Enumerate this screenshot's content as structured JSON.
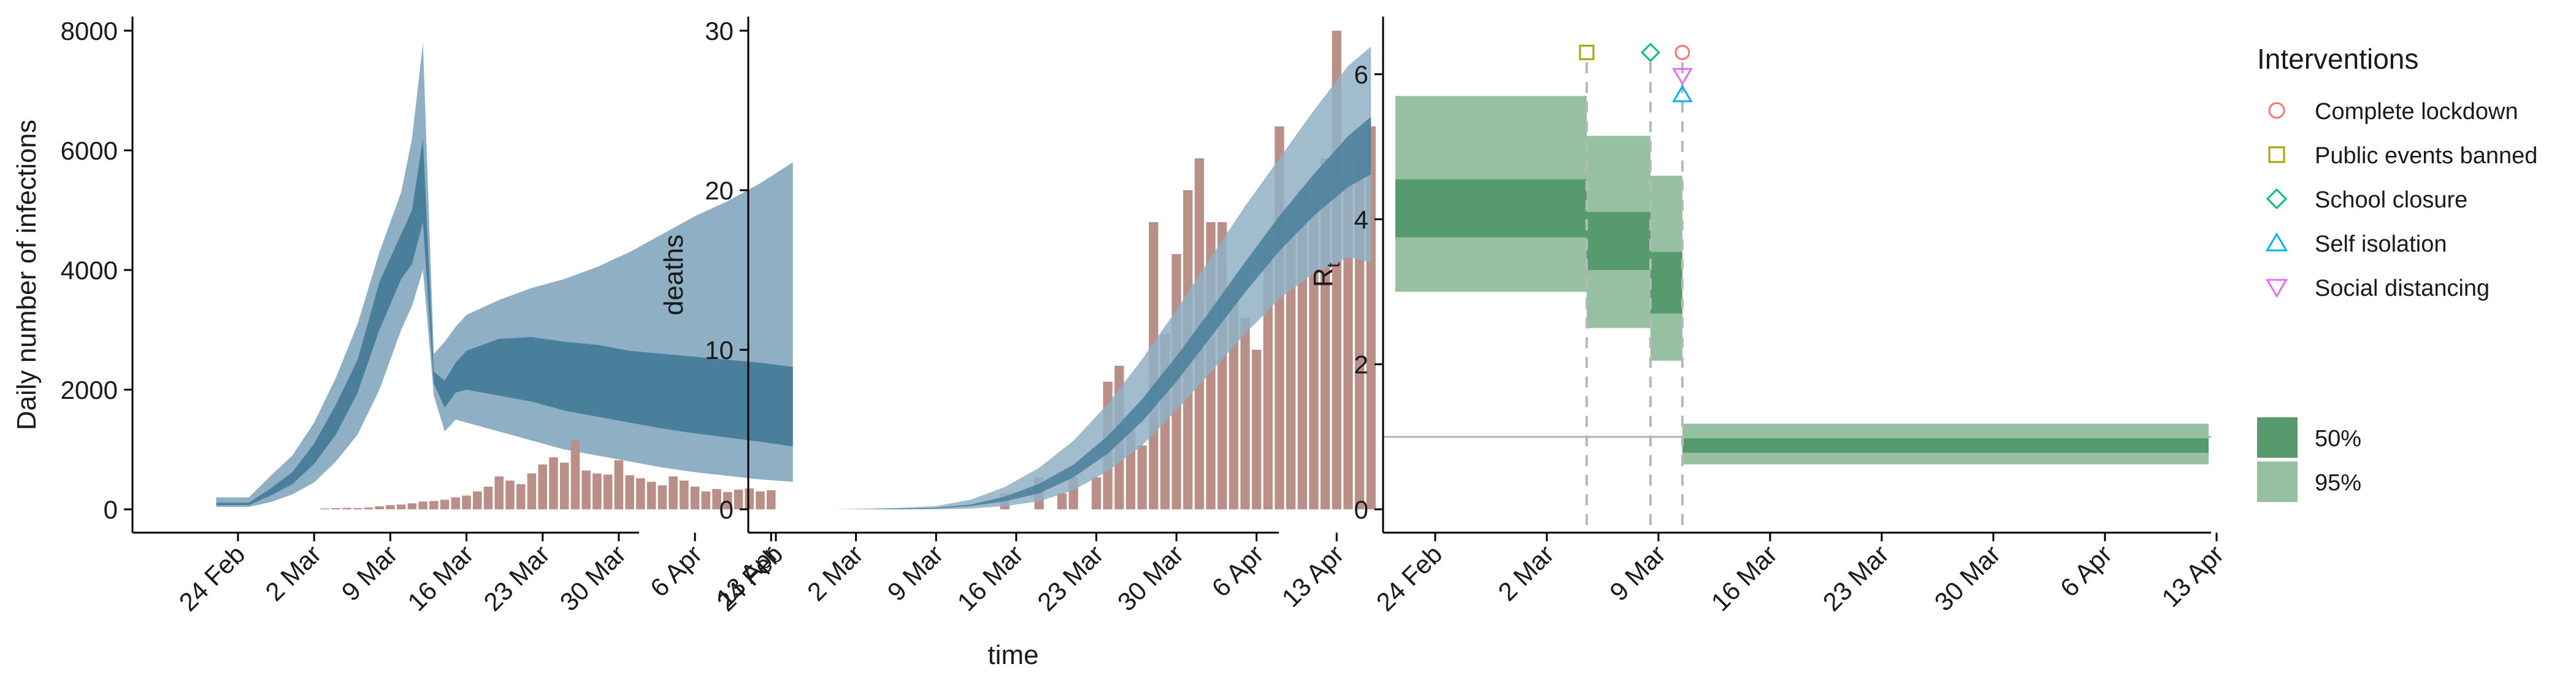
{
  "colors": {
    "blue_band_outer": "#8fb0c4",
    "blue_band_inner": "#4a7f9b",
    "bars": "#b98f88",
    "green_50": "#579a6e",
    "green_95": "#96c0a1",
    "reference_line": "#b3b3b3",
    "dashed": "#b8b8b8"
  },
  "chart_data": [
    {
      "type": "area",
      "panel": "infections",
      "ylabel": "Daily number of infections",
      "xlabel": "",
      "x_tick_labels": [
        "24 Feb",
        "2 Mar",
        "9 Mar",
        "16 Mar",
        "23 Mar",
        "30 Mar",
        "6 Apr",
        "13 Apr"
      ],
      "y_tick_labels": [
        "0",
        "2000",
        "4000",
        "6000",
        "8000"
      ],
      "ylim": [
        0,
        8000
      ],
      "grid": false,
      "bands": {
        "day": [
          -2,
          1,
          3,
          5,
          7,
          9,
          11,
          13,
          15,
          16,
          17,
          18,
          19,
          20,
          21,
          24,
          27,
          30,
          33,
          36,
          39,
          42,
          45,
          48,
          51
        ],
        "lower95": [
          40,
          40,
          120,
          250,
          450,
          800,
          1250,
          2000,
          3000,
          3400,
          4000,
          1900,
          1300,
          1500,
          1450,
          1300,
          1150,
          1000,
          900,
          800,
          700,
          620,
          560,
          500,
          460
        ],
        "lower50": [
          70,
          70,
          230,
          420,
          760,
          1250,
          1950,
          3000,
          3850,
          4100,
          4800,
          2100,
          1700,
          1950,
          2000,
          1900,
          1800,
          1650,
          1550,
          1450,
          1350,
          1270,
          1200,
          1130,
          1050
        ],
        "upper50": [
          110,
          110,
          350,
          620,
          1100,
          1750,
          2500,
          3800,
          4600,
          5000,
          6200,
          2300,
          2150,
          2450,
          2650,
          2850,
          2880,
          2800,
          2750,
          2650,
          2600,
          2550,
          2500,
          2450,
          2380
        ],
        "upper95": [
          200,
          200,
          560,
          900,
          1450,
          2200,
          3100,
          4300,
          5300,
          6200,
          7800,
          2600,
          2800,
          3050,
          3250,
          3500,
          3700,
          3850,
          4050,
          4300,
          4600,
          4900,
          5150,
          5450,
          5800
        ]
      },
      "bar_days": [
        8,
        9,
        10,
        11,
        12,
        13,
        14,
        15,
        16,
        17,
        18,
        19,
        20,
        21,
        22,
        23,
        24,
        25,
        26,
        27,
        28,
        29,
        30,
        31,
        32,
        33,
        34,
        35,
        36,
        37,
        38,
        39,
        40,
        41,
        42,
        43,
        44,
        45,
        46,
        47,
        48,
        49
      ],
      "bar_values": [
        15,
        20,
        25,
        20,
        30,
        50,
        70,
        80,
        100,
        130,
        140,
        160,
        200,
        230,
        300,
        380,
        550,
        480,
        420,
        600,
        750,
        870,
        780,
        1150,
        650,
        600,
        580,
        820,
        570,
        520,
        460,
        400,
        550,
        480,
        380,
        300,
        340,
        290,
        330,
        350,
        300,
        320
      ]
    },
    {
      "type": "area",
      "panel": "deaths",
      "ylabel": "deaths",
      "xlabel": "time",
      "x_tick_labels": [
        "24 Feb",
        "2 Mar",
        "9 Mar",
        "16 Mar",
        "23 Mar",
        "30 Mar",
        "6 Apr",
        "13 Apr"
      ],
      "y_tick_labels": [
        "0",
        "10",
        "20",
        "30"
      ],
      "ylim": [
        0,
        30
      ],
      "grid": false,
      "bands": {
        "day": [
          5,
          8,
          11,
          14,
          17,
          20,
          23,
          26,
          29,
          32,
          35,
          38,
          41,
          44,
          47,
          50,
          52
        ],
        "lower95": [
          0,
          0,
          0,
          0,
          0.05,
          0.2,
          0.5,
          1.2,
          2.4,
          4.0,
          6.2,
          8.6,
          11.0,
          13.2,
          14.8,
          15.8,
          15.5
        ],
        "lower50": [
          0,
          0,
          0,
          0.05,
          0.2,
          0.5,
          1.0,
          2.0,
          3.5,
          5.5,
          8.0,
          10.8,
          13.6,
          16.2,
          18.4,
          20.2,
          21.0
        ],
        "upper50": [
          0,
          0,
          0.05,
          0.1,
          0.3,
          0.8,
          1.6,
          2.8,
          4.6,
          6.9,
          9.6,
          12.5,
          15.5,
          18.4,
          21.0,
          23.4,
          24.6
        ],
        "upper95": [
          0,
          0.05,
          0.1,
          0.2,
          0.6,
          1.4,
          2.6,
          4.3,
          6.6,
          9.4,
          12.5,
          15.8,
          19.0,
          22.0,
          25.0,
          27.8,
          29.0
        ]
      },
      "bar_days": [
        20,
        23,
        25,
        26,
        27,
        28,
        29,
        30,
        31,
        32,
        33,
        34,
        35,
        36,
        37,
        38,
        39,
        40,
        41,
        42,
        43,
        44,
        45,
        46,
        47,
        48,
        49,
        50,
        51,
        52
      ],
      "bar_values": [
        1,
        2,
        1,
        2,
        0,
        2,
        8,
        9,
        5,
        4,
        18,
        11,
        16,
        20,
        22,
        18,
        18,
        14,
        12,
        10,
        16,
        24,
        18,
        20,
        19,
        22,
        30,
        21,
        22,
        24
      ]
    },
    {
      "type": "area",
      "panel": "rt",
      "ylabel": "Rt",
      "xlabel": "",
      "x_tick_labels": [
        "24 Feb",
        "2 Mar",
        "9 Mar",
        "16 Mar",
        "23 Mar",
        "30 Mar",
        "6 Apr",
        "13 Apr"
      ],
      "y_tick_labels": [
        "0",
        "2",
        "4",
        "6"
      ],
      "ylim": [
        0,
        6.6
      ],
      "grid": false,
      "reference_line": 1,
      "segments": [
        {
          "start": -2.5,
          "end": 9.5,
          "lower95": 3.0,
          "upper95": 5.7,
          "lower50": 3.75,
          "upper50": 4.55
        },
        {
          "start": 9.5,
          "end": 13.5,
          "lower95": 2.5,
          "upper95": 5.15,
          "lower50": 3.3,
          "upper50": 4.1
        },
        {
          "start": 13.5,
          "end": 15.5,
          "lower95": 2.05,
          "upper95": 4.6,
          "lower50": 2.7,
          "upper50": 3.55
        },
        {
          "start": 15.5,
          "end": 48.5,
          "lower95": 0.62,
          "upper95": 1.18,
          "lower50": 0.78,
          "upper50": 0.98
        }
      ],
      "intervention_days": [
        9.5,
        13.5,
        15.5
      ],
      "markers": [
        {
          "name": "Public events banned",
          "day": 9.5,
          "y": 6.3
        },
        {
          "name": "School closure",
          "day": 13.5,
          "y": 6.3
        },
        {
          "name": "Complete lockdown",
          "day": 15.5,
          "y": 6.3
        },
        {
          "name": "Social distancing",
          "day": 15.5,
          "y": 5.98
        },
        {
          "name": "Self isolation",
          "day": 15.5,
          "y": 5.72
        }
      ]
    }
  ],
  "legend": {
    "title": "Interventions",
    "items": [
      {
        "label": "Complete lockdown",
        "shape": "circle",
        "color": "#f8766d"
      },
      {
        "label": "Public events banned",
        "shape": "square",
        "color": "#a3a500"
      },
      {
        "label": "School closure",
        "shape": "diamond",
        "color": "#00bf7d"
      },
      {
        "label": "Self isolation",
        "shape": "triangle-up",
        "color": "#00b0f6"
      },
      {
        "label": "Social distancing",
        "shape": "triangle-down",
        "color": "#e76bf3"
      }
    ],
    "ci_items": [
      {
        "label": "50%",
        "color": "#579a6e"
      },
      {
        "label": "95%",
        "color": "#96c0a1"
      }
    ]
  }
}
